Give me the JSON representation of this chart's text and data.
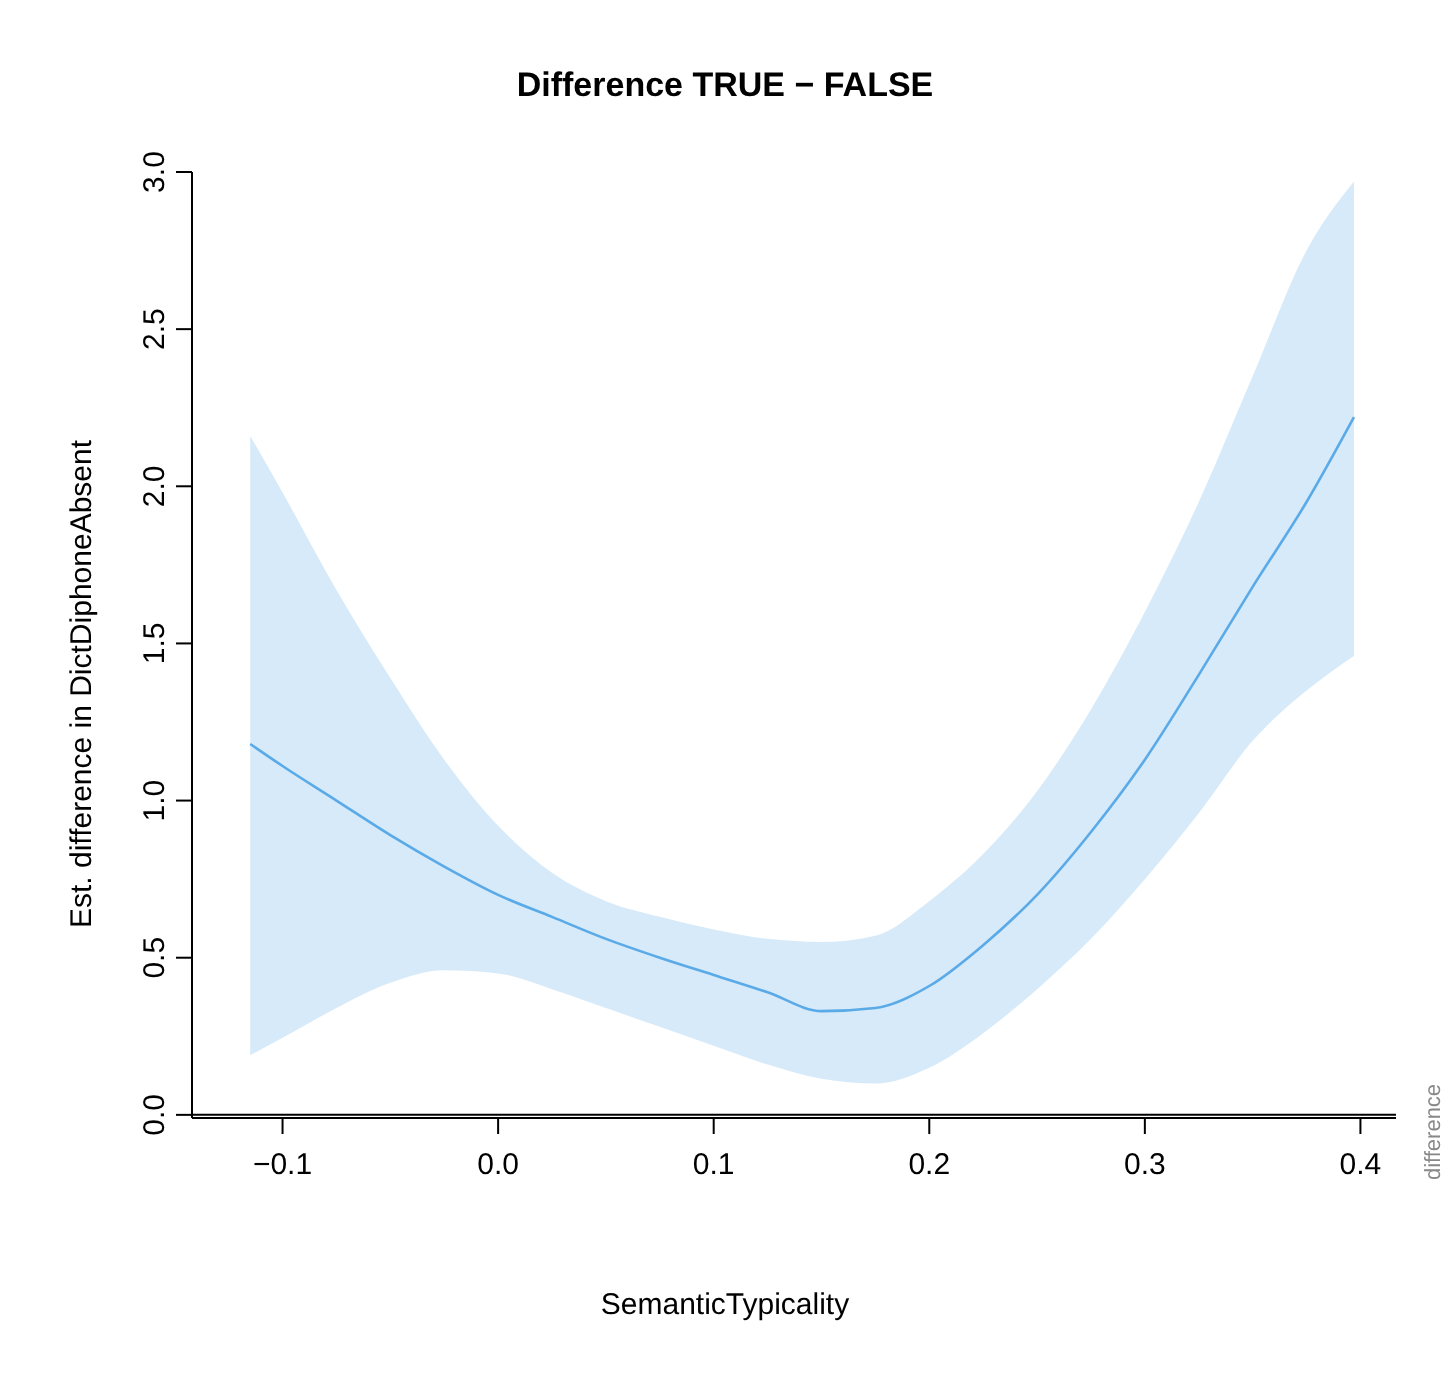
{
  "chart_data": {
    "type": "line",
    "title": "Difference TRUE − FALSE",
    "xlabel": "SemanticTypicality",
    "ylabel": "Est. difference in DictDiphoneAbsent",
    "annotations": [
      "difference"
    ],
    "x": [
      -0.115,
      -0.1,
      -0.075,
      -0.05,
      -0.025,
      0,
      0.025,
      0.05,
      0.075,
      0.1,
      0.125,
      0.15,
      0.175,
      0.2,
      0.225,
      0.25,
      0.275,
      0.3,
      0.325,
      0.35,
      0.375,
      0.397
    ],
    "series": [
      {
        "color": "#5aaae8",
        "values": [
          1.18,
          1.11,
          1.0,
          0.89,
          0.79,
          0.7,
          0.63,
          0.56,
          0.5,
          0.445,
          0.39,
          0.33,
          0.34,
          0.41,
          0.54,
          0.7,
          0.9,
          1.13,
          1.4,
          1.68,
          1.95,
          2.22
        ],
        "lower": [
          0.19,
          0.245,
          0.34,
          0.42,
          0.46,
          0.45,
          0.4,
          0.34,
          0.28,
          0.22,
          0.16,
          0.115,
          0.1,
          0.15,
          0.26,
          0.4,
          0.56,
          0.75,
          0.96,
          1.19,
          1.35,
          1.46
        ],
        "upper": [
          2.16,
          1.98,
          1.67,
          1.39,
          1.13,
          0.92,
          0.77,
          0.68,
          0.63,
          0.59,
          0.56,
          0.55,
          0.57,
          0.68,
          0.83,
          1.03,
          1.29,
          1.6,
          1.95,
          2.35,
          2.75,
          2.97
        ]
      }
    ],
    "xlim": [
      -0.142,
      0.4165
    ],
    "xticks": [
      {
        "value": -0.1,
        "label": "−0.1"
      },
      {
        "value": 0,
        "label": "0.0"
      },
      {
        "value": 0.1,
        "label": "0.1"
      },
      {
        "value": 0.2,
        "label": "0.2"
      },
      {
        "value": 0.3,
        "label": "0.3"
      },
      {
        "value": 0.4,
        "label": "0.4"
      }
    ],
    "ylim": [
      -0.01,
      3.0
    ],
    "yticks": [
      {
        "value": 0,
        "label": "0.0"
      },
      {
        "value": 0.5,
        "label": "0.5"
      },
      {
        "value": 1,
        "label": "1.0"
      },
      {
        "value": 1.5,
        "label": "1.5"
      },
      {
        "value": 2,
        "label": "2.0"
      },
      {
        "value": 2.5,
        "label": "2.5"
      },
      {
        "value": 3,
        "label": "3.0"
      }
    ],
    "ref_lines": [
      {
        "axis": "y",
        "value": 0,
        "color": "#000000"
      }
    ],
    "grid": false,
    "legend": false,
    "marker": "none",
    "line_style": "solid"
  }
}
